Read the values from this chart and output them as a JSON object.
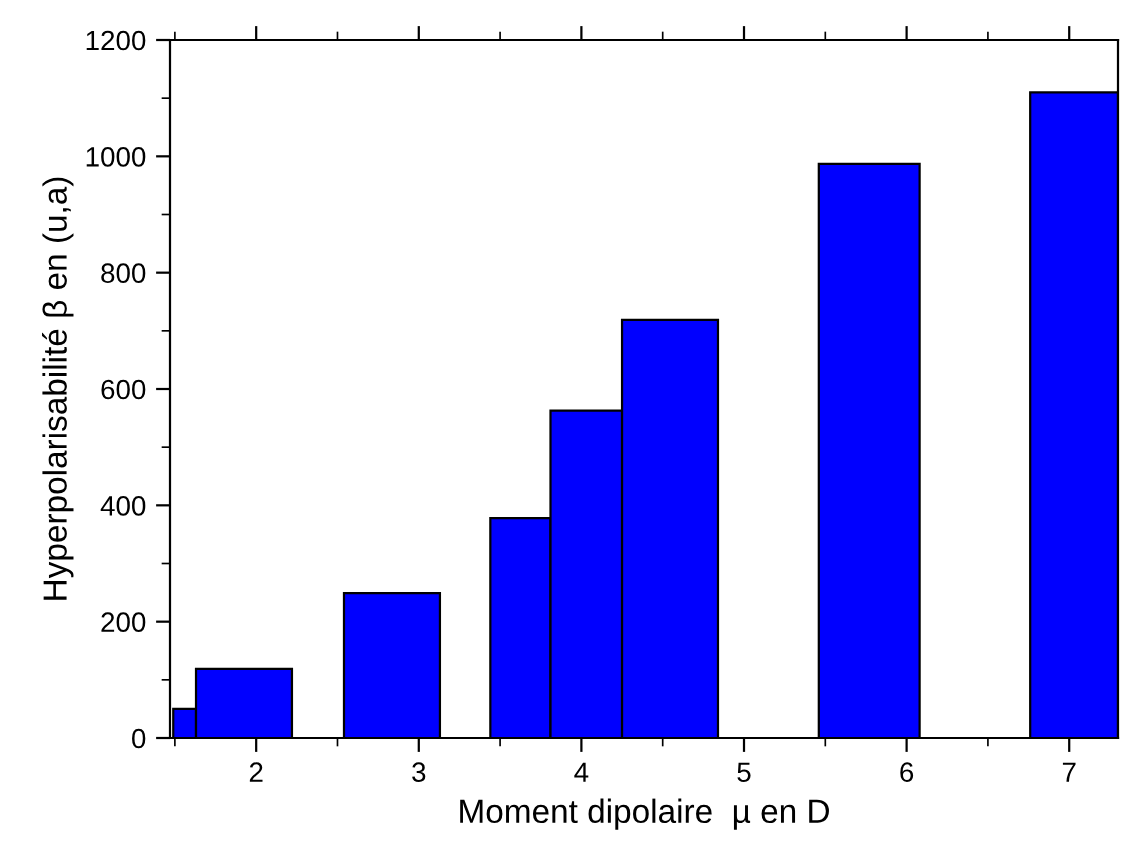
{
  "chart_data": {
    "type": "histogram",
    "xlabel": "Moment dipolaire  µ en D",
    "ylabel": "Hyperpolarisabilité β en (u,a)",
    "bins": [
      1.49,
      1.63,
      2.22,
      2.54,
      3.13,
      3.44,
      3.81,
      4.25,
      4.84,
      5.46,
      6.08,
      6.76,
      7.3
    ],
    "values": [
      50,
      119,
      null,
      249,
      null,
      378,
      563,
      719,
      null,
      987,
      null,
      1110
    ],
    "color": "#0000ff",
    "xlim": [
      1.47,
      7.3
    ],
    "xticks": [
      2,
      3,
      4,
      5,
      6,
      7
    ],
    "ylim": [
      0,
      1200
    ],
    "yticks": [
      0,
      200,
      400,
      600,
      800,
      1000,
      1200
    ],
    "grid": false
  }
}
